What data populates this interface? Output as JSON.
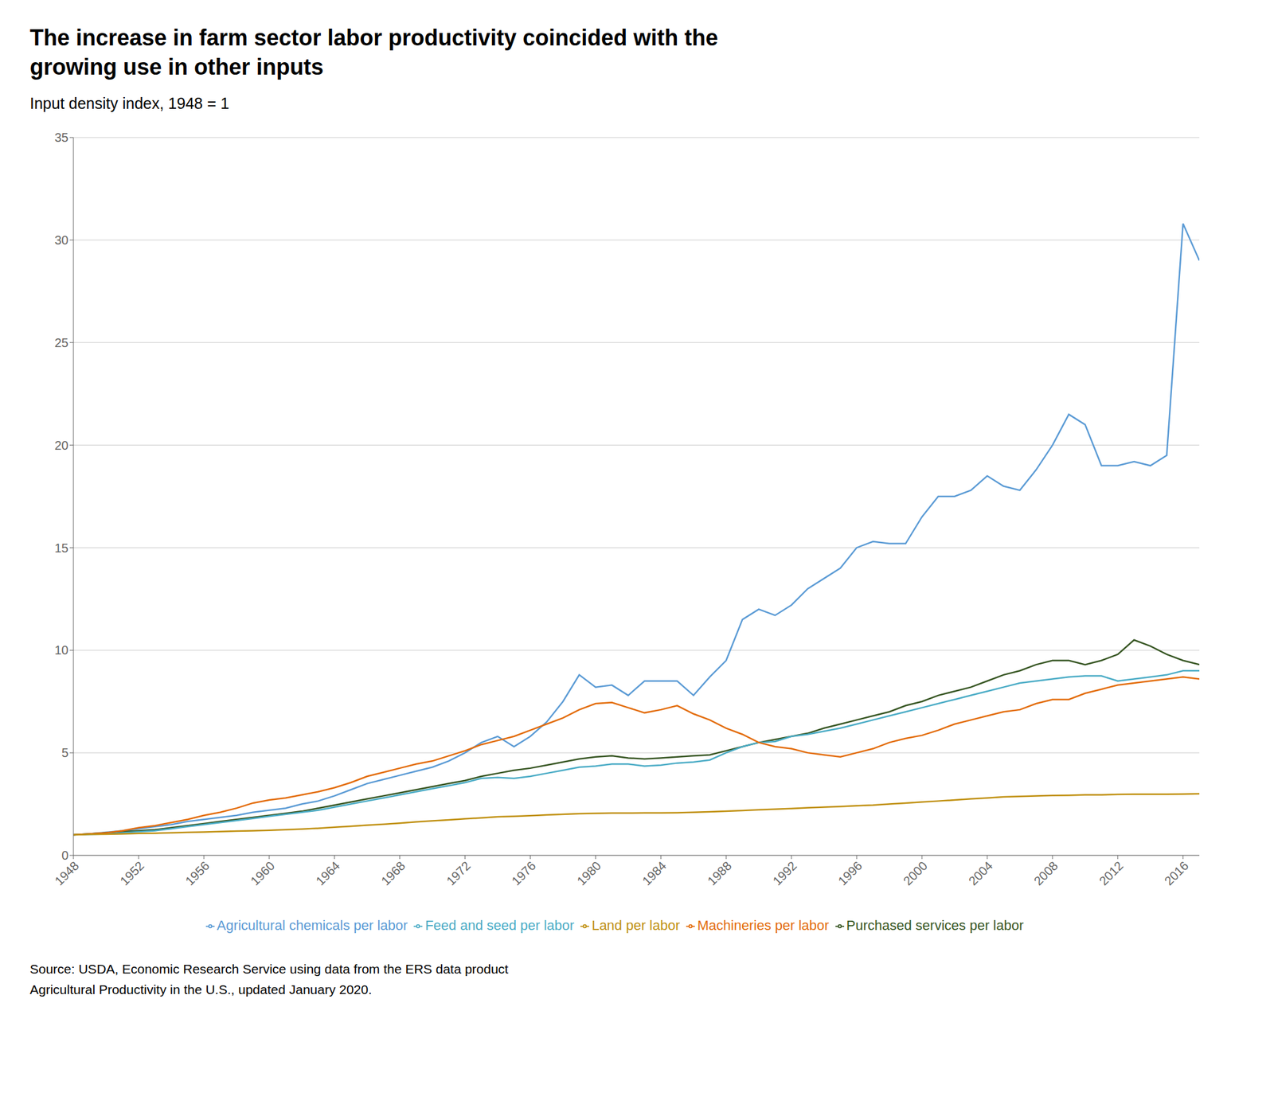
{
  "chart_data": {
    "type": "line",
    "title": "The increase in farm sector labor productivity coincided with the\ngrowing use in other inputs",
    "subtitle": "Input density index, 1948 = 1",
    "source": "Source: USDA, Economic Research Service using data from the ERS data product\nAgricultural Productivity in the U.S., updated January 2020.",
    "x": [
      1948,
      1949,
      1950,
      1951,
      1952,
      1953,
      1954,
      1955,
      1956,
      1957,
      1958,
      1959,
      1960,
      1961,
      1962,
      1963,
      1964,
      1965,
      1966,
      1967,
      1968,
      1969,
      1970,
      1971,
      1972,
      1973,
      1974,
      1975,
      1976,
      1977,
      1978,
      1979,
      1980,
      1981,
      1982,
      1983,
      1984,
      1985,
      1986,
      1987,
      1988,
      1989,
      1990,
      1991,
      1992,
      1993,
      1994,
      1995,
      1996,
      1997,
      1998,
      1999,
      2000,
      2001,
      2002,
      2003,
      2004,
      2005,
      2006,
      2007,
      2008,
      2009,
      2010,
      2011,
      2012,
      2013,
      2014,
      2015,
      2016,
      2017
    ],
    "series": [
      {
        "name": "Agricultural chemicals per labor",
        "color": "#5b9bd5",
        "values": [
          1.0,
          1.05,
          1.12,
          1.2,
          1.3,
          1.4,
          1.5,
          1.65,
          1.75,
          1.85,
          1.95,
          2.1,
          2.2,
          2.3,
          2.5,
          2.65,
          2.9,
          3.2,
          3.5,
          3.7,
          3.9,
          4.1,
          4.3,
          4.6,
          5.0,
          5.5,
          5.8,
          5.3,
          5.8,
          6.5,
          7.5,
          8.8,
          8.2,
          8.3,
          7.8,
          8.5,
          8.5,
          8.5,
          7.8,
          8.7,
          9.5,
          11.5,
          12.0,
          11.7,
          12.2,
          13.0,
          13.5,
          14.0,
          15.0,
          15.3,
          15.2,
          15.2,
          16.5,
          17.5,
          17.5,
          17.8,
          18.5,
          18.0,
          17.8,
          18.8,
          20.0,
          21.5,
          21.0,
          19.0,
          19.0,
          19.2,
          19.0,
          19.5,
          30.8,
          29.0
        ]
      },
      {
        "name": "Purchased services per labor",
        "color": "#375623",
        "values": [
          1.0,
          1.05,
          1.1,
          1.15,
          1.2,
          1.25,
          1.35,
          1.45,
          1.55,
          1.65,
          1.75,
          1.85,
          1.95,
          2.05,
          2.15,
          2.3,
          2.45,
          2.6,
          2.75,
          2.9,
          3.05,
          3.2,
          3.35,
          3.5,
          3.65,
          3.85,
          4.0,
          4.15,
          4.25,
          4.4,
          4.55,
          4.7,
          4.8,
          4.85,
          4.75,
          4.7,
          4.75,
          4.8,
          4.85,
          4.9,
          5.1,
          5.3,
          5.5,
          5.65,
          5.8,
          5.95,
          6.2,
          6.4,
          6.6,
          6.8,
          7.0,
          7.3,
          7.5,
          7.8,
          8.0,
          8.2,
          8.5,
          8.8,
          9.0,
          9.3,
          9.5,
          9.5,
          9.3,
          9.5,
          9.8,
          10.5,
          10.2,
          9.8,
          9.5,
          9.3
        ]
      },
      {
        "name": "Feed and seed per labor",
        "color": "#4bacc6",
        "values": [
          1.0,
          1.02,
          1.05,
          1.1,
          1.15,
          1.2,
          1.3,
          1.4,
          1.5,
          1.6,
          1.7,
          1.8,
          1.9,
          2.0,
          2.1,
          2.2,
          2.35,
          2.5,
          2.65,
          2.8,
          2.95,
          3.1,
          3.25,
          3.4,
          3.55,
          3.75,
          3.8,
          3.75,
          3.85,
          4.0,
          4.15,
          4.3,
          4.35,
          4.45,
          4.45,
          4.35,
          4.4,
          4.5,
          4.55,
          4.65,
          5.0,
          5.3,
          5.5,
          5.55,
          5.8,
          5.9,
          6.05,
          6.2,
          6.4,
          6.6,
          6.8,
          7.0,
          7.2,
          7.4,
          7.6,
          7.8,
          8.0,
          8.2,
          8.4,
          8.5,
          8.6,
          8.7,
          8.75,
          8.75,
          8.5,
          8.6,
          8.7,
          8.8,
          9.0,
          9.0
        ]
      },
      {
        "name": "Machineries per labor",
        "color": "#e36c0a",
        "values": [
          1.0,
          1.05,
          1.1,
          1.2,
          1.35,
          1.45,
          1.6,
          1.75,
          1.95,
          2.1,
          2.3,
          2.55,
          2.7,
          2.8,
          2.95,
          3.1,
          3.3,
          3.55,
          3.85,
          4.05,
          4.25,
          4.45,
          4.6,
          4.85,
          5.1,
          5.4,
          5.6,
          5.8,
          6.1,
          6.4,
          6.7,
          7.1,
          7.4,
          7.45,
          7.2,
          6.95,
          7.1,
          7.3,
          6.9,
          6.6,
          6.2,
          5.9,
          5.5,
          5.3,
          5.2,
          5.0,
          4.9,
          4.8,
          5.0,
          5.2,
          5.5,
          5.7,
          5.85,
          6.1,
          6.4,
          6.6,
          6.8,
          7.0,
          7.1,
          7.4,
          7.6,
          7.6,
          7.9,
          8.1,
          8.3,
          8.4,
          8.5,
          8.6,
          8.7,
          8.6
        ]
      },
      {
        "name": "Land per labor",
        "color": "#c09010",
        "values": [
          1.0,
          1.02,
          1.03,
          1.05,
          1.07,
          1.08,
          1.1,
          1.12,
          1.14,
          1.16,
          1.18,
          1.2,
          1.22,
          1.25,
          1.28,
          1.32,
          1.37,
          1.42,
          1.47,
          1.52,
          1.57,
          1.63,
          1.68,
          1.73,
          1.78,
          1.83,
          1.88,
          1.9,
          1.93,
          1.97,
          2.0,
          2.03,
          2.05,
          2.06,
          2.06,
          2.07,
          2.07,
          2.08,
          2.1,
          2.12,
          2.15,
          2.18,
          2.22,
          2.25,
          2.28,
          2.32,
          2.35,
          2.38,
          2.42,
          2.45,
          2.5,
          2.55,
          2.6,
          2.65,
          2.7,
          2.75,
          2.8,
          2.85,
          2.87,
          2.9,
          2.92,
          2.93,
          2.95,
          2.95,
          2.97,
          2.98,
          2.98,
          2.98,
          2.99,
          3.0
        ]
      }
    ],
    "xlim": [
      1948,
      2017
    ],
    "xticks": [
      1948,
      1952,
      1956,
      1960,
      1964,
      1968,
      1972,
      1976,
      1980,
      1984,
      1988,
      1992,
      1996,
      2000,
      2004,
      2008,
      2012,
      2016
    ],
    "ylim": [
      0,
      35
    ],
    "yticks": [
      0,
      5,
      10,
      15,
      20,
      25,
      30,
      35
    ],
    "grid": "y",
    "legend": "bottom"
  }
}
